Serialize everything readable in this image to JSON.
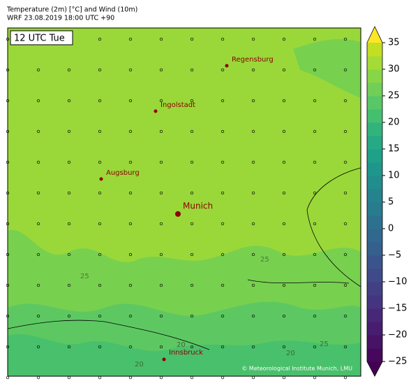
{
  "header": {
    "title": "Temperature (2m) [°C] and Wind (10m)",
    "subtitle": "WRF 23.08.2019 18:00 UTC +90"
  },
  "map": {
    "time_label": "12 UTC Tue",
    "cities": [
      {
        "label": "Regensburg"
      },
      {
        "label": "Ingolstadt"
      },
      {
        "label": "Augsburg"
      },
      {
        "label": "Munich"
      },
      {
        "label": "Innsbruck"
      }
    ],
    "contour_labels": [
      "25",
      "25",
      "20",
      "20",
      "20",
      "25"
    ],
    "credit": "© Meteorological Institute Munich, LMU"
  },
  "colorbar": {
    "lim": [
      -25,
      35
    ],
    "ticks": [
      {
        "value": 35,
        "label": "35"
      },
      {
        "value": 30,
        "label": "30"
      },
      {
        "value": 25,
        "label": "25"
      },
      {
        "value": 20,
        "label": "20"
      },
      {
        "value": 15,
        "label": "15"
      },
      {
        "value": 10,
        "label": "10"
      },
      {
        "value": 5,
        "label": "5"
      },
      {
        "value": 0,
        "label": "0"
      },
      {
        "value": -5,
        "label": "−5"
      },
      {
        "value": -10,
        "label": "−10"
      },
      {
        "value": -15,
        "label": "−15"
      },
      {
        "value": -20,
        "label": "−20"
      },
      {
        "value": -25,
        "label": "−25"
      }
    ],
    "colors": [
      "#46085c",
      "#471365",
      "#481d6f",
      "#472878",
      "#453581",
      "#423f85",
      "#3e4a89",
      "#3a548c",
      "#355f8d",
      "#31688e",
      "#2d718e",
      "#297b8e",
      "#25838e",
      "#218d8d",
      "#1f968b",
      "#1fa088",
      "#26a985",
      "#32b37b",
      "#44bf70",
      "#58c765",
      "#70cf57",
      "#89d548",
      "#a5db36",
      "#c2df23"
    ],
    "under_color": "#440154",
    "over_color": "#fde725"
  }
}
